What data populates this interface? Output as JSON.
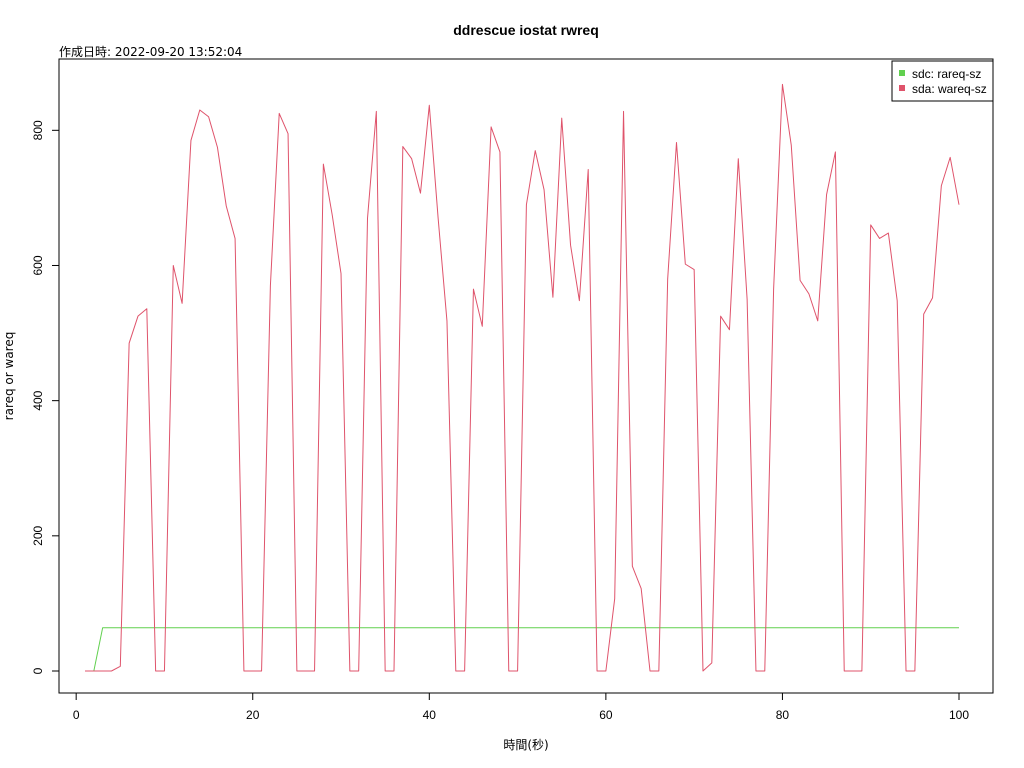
{
  "chart_data": {
    "type": "line",
    "title": "ddrescue iostat rwreq",
    "subtitle": "作成日時: 2022-09-20 13:52:04",
    "xlabel": "時間(秒)",
    "ylabel": "rareq or wareq",
    "xlim": [
      1,
      100
    ],
    "ylim": [
      0,
      870
    ],
    "xticks": [
      0,
      20,
      40,
      60,
      80,
      100
    ],
    "yticks": [
      0,
      200,
      400,
      600,
      800
    ],
    "grid": false,
    "legend_position": "top-right",
    "series": [
      {
        "name": "sdc: rareq-sz",
        "color": "#61d04f",
        "x": [
          1,
          2,
          3,
          100
        ],
        "y": [
          0,
          0,
          64,
          64
        ]
      },
      {
        "name": "sda: wareq-sz",
        "color": "#df536b",
        "x": [
          1,
          2,
          3,
          4,
          5,
          6,
          7,
          8,
          9,
          10,
          11,
          12,
          13,
          14,
          15,
          16,
          17,
          18,
          19,
          20,
          21,
          22,
          23,
          24,
          25,
          26,
          27,
          28,
          29,
          30,
          31,
          32,
          33,
          34,
          35,
          36,
          37,
          38,
          39,
          40,
          41,
          42,
          43,
          44,
          45,
          46,
          47,
          48,
          49,
          50,
          51,
          52,
          53,
          54,
          55,
          56,
          57,
          58,
          59,
          60,
          61,
          62,
          63,
          64,
          65,
          66,
          67,
          68,
          69,
          70,
          71,
          72,
          73,
          74,
          75,
          76,
          77,
          78,
          79,
          80,
          81,
          82,
          83,
          84,
          85,
          86,
          87,
          88,
          89,
          90,
          91,
          92,
          93,
          94,
          95,
          96,
          97,
          98,
          99,
          100
        ],
        "y": [
          0,
          0,
          0,
          0,
          7,
          485,
          525,
          536,
          0,
          0,
          600,
          544,
          785,
          830,
          820,
          775,
          688,
          640,
          0,
          0,
          0,
          570,
          825,
          795,
          0,
          0,
          0,
          750,
          675,
          588,
          0,
          0,
          670,
          828,
          0,
          0,
          776,
          758,
          707,
          837,
          670,
          518,
          0,
          0,
          565,
          510,
          805,
          768,
          0,
          0,
          690,
          770,
          712,
          553,
          818,
          630,
          548,
          742,
          0,
          0,
          107,
          828,
          155,
          122,
          0,
          0,
          580,
          782,
          602,
          594,
          0,
          12,
          525,
          505,
          758,
          550,
          0,
          0,
          565,
          868,
          778,
          578,
          558,
          518,
          705,
          768,
          0,
          0,
          0,
          660,
          640,
          648,
          548,
          0,
          0,
          528,
          552,
          718,
          760,
          690
        ]
      }
    ]
  }
}
